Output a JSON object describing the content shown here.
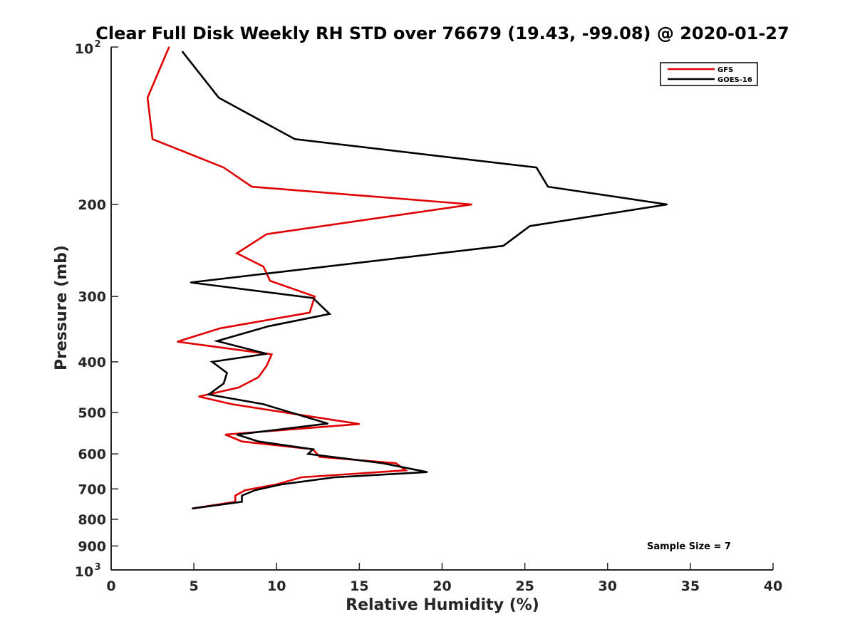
{
  "chart_data": {
    "type": "line",
    "title": "Clear Full Disk Weekly RH STD over 76679 (19.43, -99.08) @ 2020-01-27",
    "xlabel": "Relative Humidity (%)",
    "ylabel": "Pressure (mb)",
    "xlim": [
      0,
      40
    ],
    "ylim": [
      100,
      1000
    ],
    "y_scale": "log",
    "y_reversed": true,
    "x_ticks": [
      0,
      5,
      10,
      15,
      20,
      25,
      30,
      35,
      40
    ],
    "y_ticks": [
      {
        "value": 100,
        "base": "10",
        "exp": "2"
      },
      {
        "value": 200,
        "label": "200"
      },
      {
        "value": 300,
        "label": "300"
      },
      {
        "value": 400,
        "label": "400"
      },
      {
        "value": 500,
        "label": "500"
      },
      {
        "value": 600,
        "label": "600"
      },
      {
        "value": 700,
        "label": "700"
      },
      {
        "value": 800,
        "label": "800"
      },
      {
        "value": 900,
        "label": "900"
      },
      {
        "value": 1000,
        "base": "10",
        "exp": "3"
      }
    ],
    "grid": false,
    "legend_position": "top-right",
    "series": [
      {
        "name": "GFS",
        "color": "#e00000",
        "points": [
          [
            3.5,
            100
          ],
          [
            2.2,
            125
          ],
          [
            2.5,
            150
          ],
          [
            6.8,
            170
          ],
          [
            8.5,
            185
          ],
          [
            21.8,
            200
          ],
          [
            9.4,
            228
          ],
          [
            7.6,
            248
          ],
          [
            9.2,
            263
          ],
          [
            9.6,
            280
          ],
          [
            12.3,
            300
          ],
          [
            12.0,
            322
          ],
          [
            6.6,
            345
          ],
          [
            4.0,
            366
          ],
          [
            9.7,
            387
          ],
          [
            9.4,
            407
          ],
          [
            8.9,
            428
          ],
          [
            7.7,
            448
          ],
          [
            5.3,
            466
          ],
          [
            7.3,
            482
          ],
          [
            15.0,
            526
          ],
          [
            6.9,
            551
          ],
          [
            7.9,
            568
          ],
          [
            12.2,
            588
          ],
          [
            12.6,
            608
          ],
          [
            17.2,
            625
          ],
          [
            17.8,
            645
          ],
          [
            11.5,
            665
          ],
          [
            10.0,
            686
          ],
          [
            8.1,
            704
          ],
          [
            7.5,
            721
          ],
          [
            7.5,
            741
          ],
          [
            4.9,
            763
          ]
        ]
      },
      {
        "name": "GOES-16",
        "color": "#000000",
        "points": [
          [
            4.3,
            102
          ],
          [
            6.5,
            125
          ],
          [
            11.1,
            150
          ],
          [
            25.7,
            170
          ],
          [
            26.4,
            185
          ],
          [
            33.6,
            200
          ],
          [
            25.3,
            220
          ],
          [
            23.7,
            240
          ],
          [
            4.8,
            282
          ],
          [
            12.2,
            302
          ],
          [
            13.2,
            324
          ],
          [
            9.5,
            342
          ],
          [
            6.4,
            365
          ],
          [
            9.4,
            386
          ],
          [
            6.1,
            400
          ],
          [
            7.0,
            420
          ],
          [
            6.8,
            440
          ],
          [
            5.9,
            462
          ],
          [
            9.2,
            482
          ],
          [
            13.1,
            525
          ],
          [
            7.6,
            551
          ],
          [
            8.9,
            568
          ],
          [
            12.2,
            588
          ],
          [
            11.9,
            600
          ],
          [
            16.4,
            625
          ],
          [
            19.1,
            650
          ],
          [
            13.5,
            665
          ],
          [
            10.3,
            686
          ],
          [
            8.7,
            704
          ],
          [
            7.9,
            721
          ],
          [
            7.9,
            741
          ],
          [
            4.9,
            763
          ]
        ]
      }
    ],
    "annotations": [
      {
        "text": "Sample Size = 7"
      }
    ]
  }
}
